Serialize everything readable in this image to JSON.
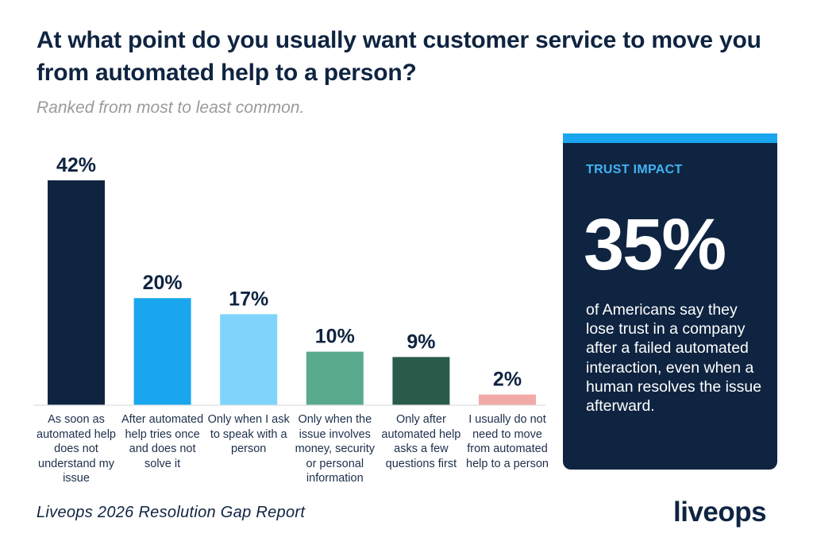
{
  "title": "At what point do you usually want customer service to move you from automated help to a person?",
  "subtitle": "Ranked from most to least common.",
  "source": "Liveops 2026 Resolution Gap Report",
  "logo_text": "liveops",
  "trust_card": {
    "label": "TRUST IMPACT",
    "value": "35%",
    "text": "of Americans say they lose trust in a company after a failed automated interaction, even when a human resolves the issue afterward.",
    "accent_color": "#1aa6ee",
    "bg_color": "#0f2441"
  },
  "chart_data": {
    "type": "bar",
    "categories": [
      "As soon as automated help does not understand my issue",
      "After automated help tries once and does not solve it",
      "Only when I ask to speak with a person",
      "Only when the issue involves money, security or personal information",
      "Only after automated help asks a few questions first",
      "I usually do not need to move from automated help to a person"
    ],
    "values": [
      42,
      20,
      17,
      10,
      9,
      2
    ],
    "value_labels": [
      "42%",
      "20%",
      "17%",
      "10%",
      "9%",
      "2%"
    ],
    "colors": [
      "#0f2441",
      "#1aa6ee",
      "#7fd4fb",
      "#5aaa8e",
      "#2a5c4c",
      "#f2aaa8"
    ],
    "ylim": [
      0,
      42
    ],
    "xlabel": "",
    "ylabel": "",
    "grid": false,
    "legend": "none"
  }
}
